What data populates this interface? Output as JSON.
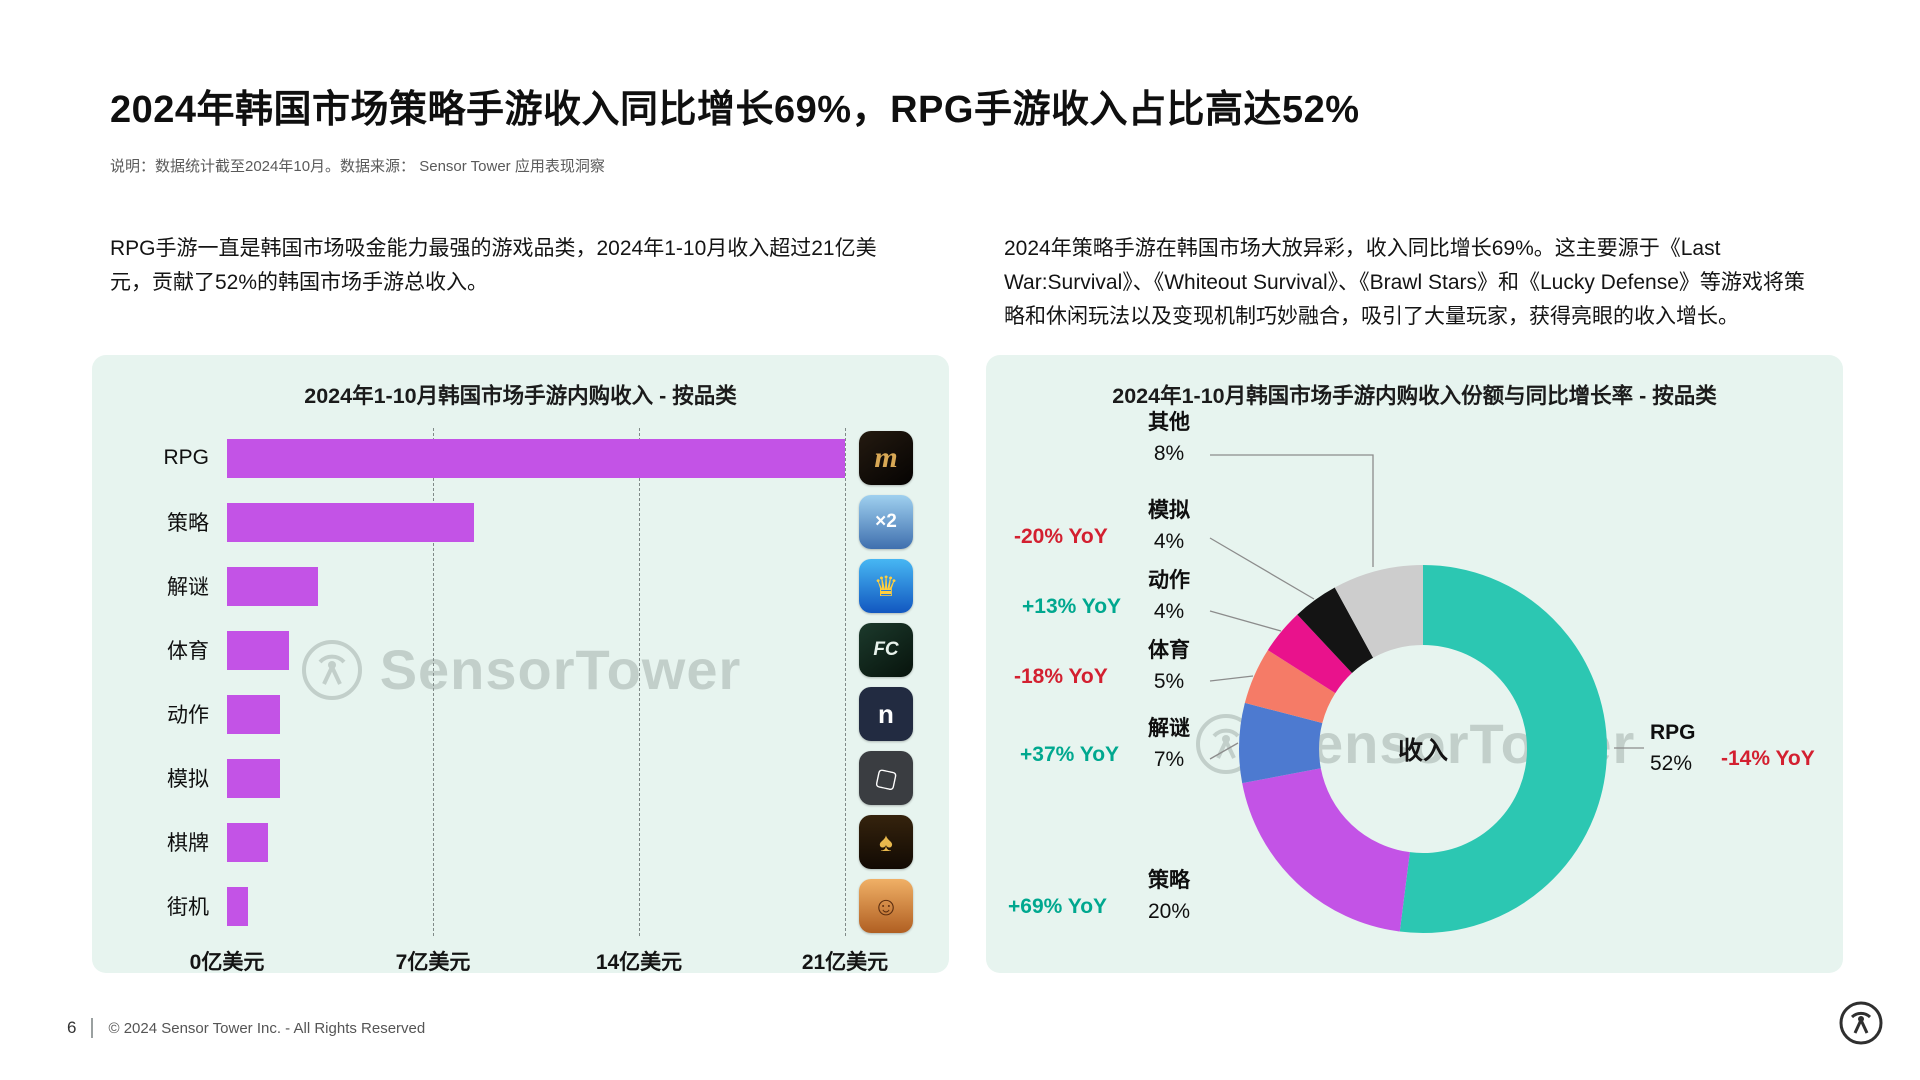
{
  "page": {
    "title": "2024年韩国市场策略手游收入同比增长69%，RPG手游收入占比高达52%",
    "note": "说明：数据统计截至2024年10月。数据来源： Sensor Tower 应用表现洞察",
    "para_left": "RPG手游一直是韩国市场吸金能力最强的游戏品类，2024年1-10月收入超过21亿美元，贡献了52%的韩国市场手游总收入。",
    "para_right": "2024年策略手游在韩国市场大放异彩，收入同比增长69%。这主要源于《Last War:Survival》、《Whiteout Survival》、《Brawl Stars》和《Lucky Defense》等游戏将策略和休闲玩法以及变现机制巧妙融合，吸引了大量玩家，获得亮眼的收入增长。",
    "watermark": "SensorTower",
    "page_number": "6",
    "copyright": "© 2024 Sensor Tower Inc. - All Rights Reserved"
  },
  "colors": {
    "bar": "#c353e6",
    "yoy_up": "#00a88f",
    "yoy_down": "#d32030",
    "panel_bg": "#e7f4ef"
  },
  "chart_data": [
    {
      "type": "bar",
      "orientation": "horizontal",
      "title": "2024年1-10月韩国市场手游内购收入 - 按品类",
      "unit": "亿美元",
      "categories": [
        "RPG",
        "策略",
        "解谜",
        "体育",
        "动作",
        "模拟",
        "棋牌",
        "街机"
      ],
      "values": [
        21,
        8.4,
        3.1,
        2.1,
        1.8,
        1.8,
        1.4,
        0.7
      ],
      "xlim": [
        0,
        21
      ],
      "x_ticks": [
        "0亿美元",
        "7亿美元",
        "14亿美元",
        "21亿美元"
      ],
      "bar_color": "#c353e6",
      "grid": "dashed-vertical",
      "icons": [
        "lineage-m",
        "last-war-survival",
        "royal-match",
        "fc-online",
        "netmarble",
        "roblox",
        "poker-hangame",
        "cookie-run"
      ]
    },
    {
      "type": "pie",
      "subtype": "donut",
      "title": "2024年1-10月韩国市场手游内购收入份额与同比增长率 - 按品类",
      "center_label": "收入",
      "start_angle": "top",
      "direction": "clockwise",
      "segments": [
        {
          "label": "RPG",
          "share": 52,
          "share_text": "52%",
          "yoy": "-14% YoY",
          "yoy_dir": "down",
          "color": "#2cc7b2"
        },
        {
          "label": "策略",
          "share": 20,
          "share_text": "20%",
          "yoy": "+69% YoY",
          "yoy_dir": "up",
          "color": "#c353e6"
        },
        {
          "label": "解谜",
          "share": 7,
          "share_text": "7%",
          "yoy": "+37% YoY",
          "yoy_dir": "up",
          "color": "#4d7ad0"
        },
        {
          "label": "体育",
          "share": 5,
          "share_text": "5%",
          "yoy": "-18% YoY",
          "yoy_dir": "down",
          "color": "#f57b67"
        },
        {
          "label": "动作",
          "share": 4,
          "share_text": "4%",
          "yoy": "+13% YoY",
          "yoy_dir": "up",
          "color": "#e9128c"
        },
        {
          "label": "模拟",
          "share": 4,
          "share_text": "4%",
          "yoy": "-20% YoY",
          "yoy_dir": "down",
          "color": "#141414"
        },
        {
          "label": "其他",
          "share": 8,
          "share_text": "8%",
          "yoy": "",
          "yoy_dir": "",
          "color": "#cdcdcd"
        }
      ]
    }
  ]
}
